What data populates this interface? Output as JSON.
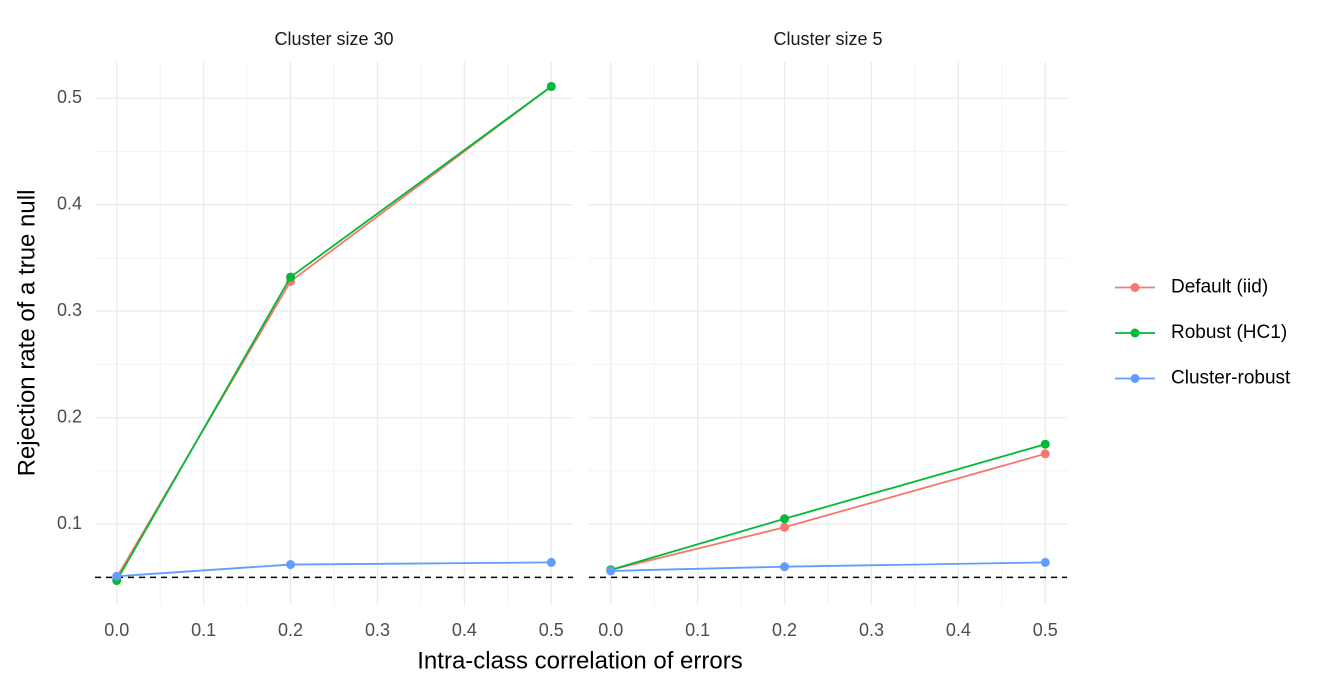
{
  "axes": {
    "xlabel": "Intra-class correlation of errors",
    "ylabel": "Rejection rate of a true null"
  },
  "chart_data": [
    {
      "type": "line",
      "title": "Cluster size 30",
      "x": [
        0,
        0.2,
        0.5
      ],
      "series": [
        {
          "name": "Default (iid)",
          "color": "#F8766D",
          "values": [
            0.05,
            0.328,
            0.511
          ]
        },
        {
          "name": "Robust (HC1)",
          "color": "#00BA38",
          "values": [
            0.047,
            0.332,
            0.511
          ]
        },
        {
          "name": "Cluster-robust",
          "color": "#619CFF",
          "values": [
            0.051,
            0.062,
            0.064
          ]
        }
      ],
      "xlim": [
        -0.025,
        0.525
      ],
      "ylim": [
        0.024,
        0.534
      ],
      "xticks": [
        {
          "value": 0,
          "label": "0.0"
        },
        0.1,
        0.2,
        0.3,
        0.4,
        0.5
      ],
      "yticks": [
        0.1,
        0.2,
        0.3,
        0.4,
        0.5
      ],
      "hline": 0.05,
      "grid": true,
      "legend": "right"
    },
    {
      "type": "line",
      "title": "Cluster size 5",
      "x": [
        0,
        0.2,
        0.5
      ],
      "series": [
        {
          "name": "Default (iid)",
          "color": "#F8766D",
          "values": [
            0.057,
            0.097,
            0.166
          ]
        },
        {
          "name": "Robust (HC1)",
          "color": "#00BA38",
          "values": [
            0.057,
            0.105,
            0.175
          ]
        },
        {
          "name": "Cluster-robust",
          "color": "#619CFF",
          "values": [
            0.056,
            0.06,
            0.064
          ]
        }
      ],
      "xlim": [
        -0.025,
        0.525
      ],
      "ylim": [
        0.024,
        0.534
      ],
      "xticks": [
        {
          "value": 0,
          "label": "0.0"
        },
        0.1,
        0.2,
        0.3,
        0.4,
        0.5
      ],
      "yticks": [
        0.1,
        0.2,
        0.3,
        0.4,
        0.5
      ],
      "hline": 0.05,
      "grid": true
    }
  ]
}
